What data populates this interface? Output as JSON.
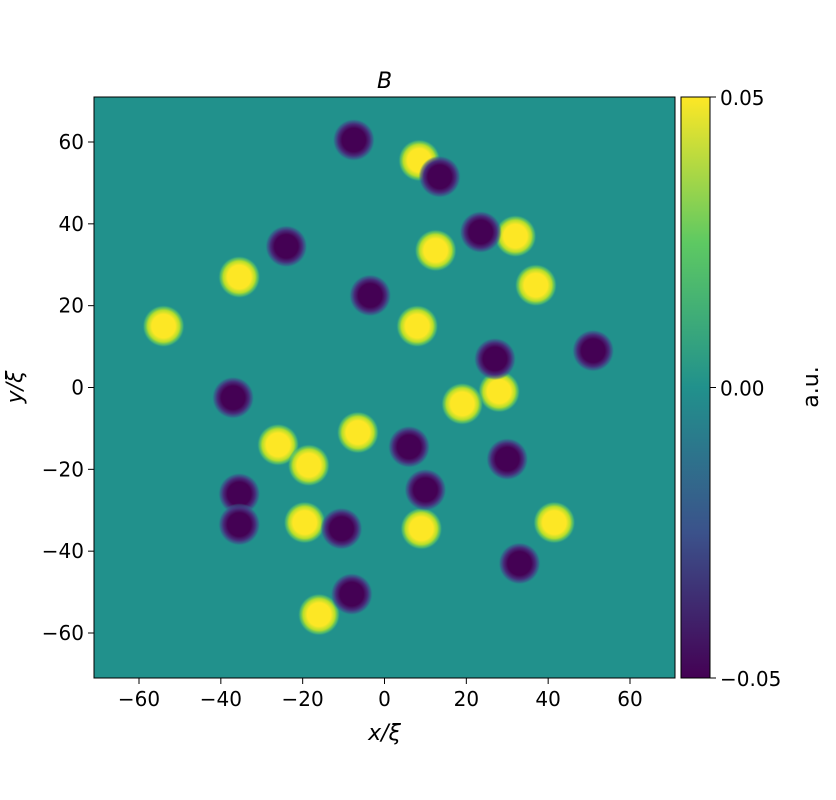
{
  "chart_data": {
    "type": "heatmap",
    "title": "B",
    "xlabel": "x/ξ",
    "ylabel": "y/ξ",
    "xlim": [
      -71,
      71
    ],
    "ylim": [
      -71,
      71
    ],
    "x_ticks": [
      -60,
      -40,
      -20,
      0,
      20,
      40,
      60
    ],
    "x_tick_labels": [
      "−60",
      "−40",
      "−20",
      "0",
      "20",
      "40",
      "60"
    ],
    "y_ticks": [
      60,
      40,
      20,
      0,
      -20,
      -40,
      -60
    ],
    "y_tick_labels": [
      "60",
      "40",
      "20",
      "0",
      "−20",
      "−40",
      "−60"
    ],
    "background_value": 0.0,
    "colorbar": {
      "label": "a.u.",
      "min": -0.05,
      "max": 0.05,
      "ticks": [
        0.05,
        0.0,
        -0.05
      ],
      "tick_labels": [
        "0.05",
        "0.00",
        "−0.05"
      ],
      "colormap": "viridis",
      "colors": [
        "#440154",
        "#3b528b",
        "#21918c",
        "#5ec962",
        "#fde725"
      ]
    },
    "positive_spots": [
      {
        "x": 8.5,
        "y": 55.5,
        "value": 0.05
      },
      {
        "x": 12.5,
        "y": 33.5,
        "value": 0.05
      },
      {
        "x": 32,
        "y": 37,
        "value": 0.05
      },
      {
        "x": 37,
        "y": 25,
        "value": 0.05
      },
      {
        "x": -35.5,
        "y": 27,
        "value": 0.05
      },
      {
        "x": -54,
        "y": 15,
        "value": 0.05
      },
      {
        "x": 8,
        "y": 15,
        "value": 0.05
      },
      {
        "x": 28,
        "y": -1,
        "value": 0.05
      },
      {
        "x": 19,
        "y": -4,
        "value": 0.05
      },
      {
        "x": -6.5,
        "y": -11,
        "value": 0.05
      },
      {
        "x": -26,
        "y": -14,
        "value": 0.05
      },
      {
        "x": -18.5,
        "y": -19,
        "value": 0.05
      },
      {
        "x": -19.5,
        "y": -33,
        "value": 0.05
      },
      {
        "x": 9,
        "y": -34.5,
        "value": 0.05
      },
      {
        "x": 41.5,
        "y": -33,
        "value": 0.05
      },
      {
        "x": -16,
        "y": -55.5,
        "value": 0.05
      }
    ],
    "negative_spots": [
      {
        "x": -7.5,
        "y": 60.5,
        "value": -0.05
      },
      {
        "x": 13.5,
        "y": 51.5,
        "value": -0.05
      },
      {
        "x": 23.5,
        "y": 38,
        "value": -0.05
      },
      {
        "x": -24,
        "y": 34.5,
        "value": -0.05
      },
      {
        "x": -3.5,
        "y": 22.5,
        "value": -0.05
      },
      {
        "x": 51,
        "y": 9,
        "value": -0.05
      },
      {
        "x": 27,
        "y": 7,
        "value": -0.05
      },
      {
        "x": -37,
        "y": -2.5,
        "value": -0.05
      },
      {
        "x": 6,
        "y": -14.5,
        "value": -0.05
      },
      {
        "x": 30,
        "y": -17.5,
        "value": -0.05
      },
      {
        "x": 10,
        "y": -25,
        "value": -0.05
      },
      {
        "x": -35.5,
        "y": -26,
        "value": -0.05
      },
      {
        "x": -35.5,
        "y": -33.5,
        "value": -0.05
      },
      {
        "x": -10.5,
        "y": -34.5,
        "value": -0.05
      },
      {
        "x": 33,
        "y": -43,
        "value": -0.05
      },
      {
        "x": -8,
        "y": -50.5,
        "value": -0.05
      }
    ]
  }
}
